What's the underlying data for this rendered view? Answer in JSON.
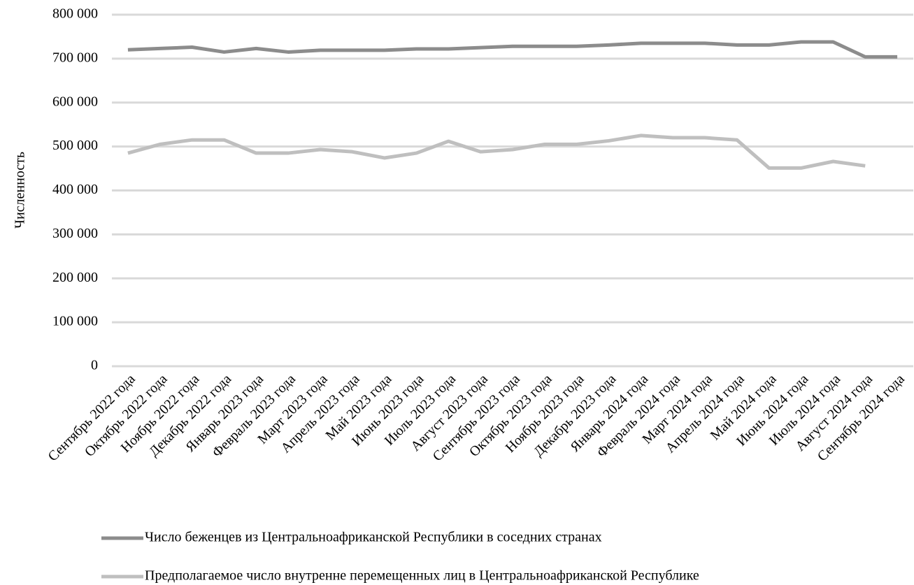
{
  "chart_data": {
    "type": "line",
    "y_label": "Численность",
    "categories": [
      "Сентябрь 2022 года",
      "Октябрь 2022 года",
      "Ноябрь 2022 года",
      "Декабрь 2022 года",
      "Январь 2023 года",
      "Февраль 2023 года",
      "Март 2023 года",
      "Апрель 2023 года",
      "Май 2023 года",
      "Июнь 2023 года",
      "Июль 2023 года",
      "Август 2023 года",
      "Сентябрь 2023 года",
      "Октябрь 2023 года",
      "Ноябрь 2023 года",
      "Декабрь 2023 года",
      "Январь 2024 года",
      "Февраль 2024 года",
      "Март 2024 года",
      "Апрель 2024 года",
      "Май 2024 года",
      "Июнь 2024 года",
      "Июль 2024 года",
      "Август 2024 года",
      "Сентябрь 2024 года"
    ],
    "series": [
      {
        "name": "Число беженцев из Центральноафриканской Республики в соседних странах",
        "color": "#8c8c8c",
        "values": [
          720000,
          723000,
          726000,
          715000,
          723000,
          715000,
          719000,
          719000,
          719000,
          722000,
          722000,
          725000,
          728000,
          728000,
          728000,
          731000,
          735000,
          735000,
          735000,
          731000,
          731000,
          738000,
          738000,
          704000,
          704000
        ]
      },
      {
        "name": "Предполагаемое число внутренне перемещенных лиц в Центральноафриканской Республике",
        "color": "#bfbfbf",
        "values": [
          485000,
          505000,
          515000,
          515000,
          485000,
          485000,
          493000,
          488000,
          474000,
          485000,
          512000,
          488000,
          493000,
          505000,
          505000,
          513000,
          525000,
          520000,
          520000,
          515000,
          451000,
          451000,
          466000,
          456000,
          null
        ]
      }
    ],
    "ylim": [
      0,
      800000
    ],
    "yticks": [
      0,
      {
        "value": 100000,
        "label": "100 000"
      },
      {
        "value": 200000,
        "label": "200 000"
      },
      {
        "value": 300000,
        "label": "300 000"
      },
      {
        "value": 400000,
        "label": "400 000"
      },
      {
        "value": 500000,
        "label": "500 000"
      },
      {
        "value": 600000,
        "label": "600 000"
      },
      {
        "value": 700000,
        "label": "700 000"
      },
      {
        "value": 800000,
        "label": "800 000"
      }
    ],
    "grid": true,
    "legend": "bottom"
  }
}
